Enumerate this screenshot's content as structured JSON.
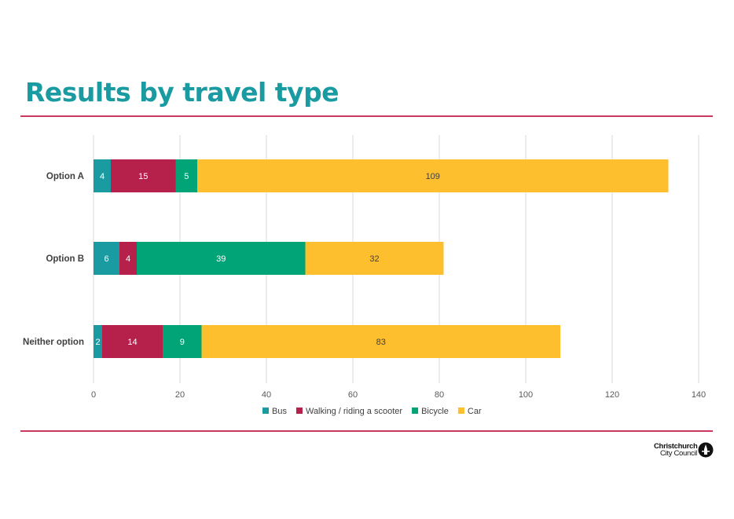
{
  "page": {
    "title": "Results by travel type"
  },
  "logo": {
    "line1": "Christchurch",
    "line2": "City Council"
  },
  "chart_data": {
    "type": "bar",
    "orientation": "horizontal",
    "stacked": true,
    "categories": [
      "Option A",
      "Option B",
      "Neither option"
    ],
    "series": [
      {
        "name": "Bus",
        "color": "#1a9ba1",
        "values": [
          4,
          6,
          2
        ]
      },
      {
        "name": "Walking / riding a scooter",
        "color": "#b5214a",
        "values": [
          15,
          4,
          14
        ]
      },
      {
        "name": "Bicycle",
        "color": "#00a477",
        "values": [
          5,
          39,
          9
        ]
      },
      {
        "name": "Car",
        "color": "#fdbf2d",
        "values": [
          109,
          32,
          83
        ]
      }
    ],
    "x_ticks": [
      0,
      20,
      40,
      60,
      80,
      100,
      120,
      140
    ],
    "xlim": [
      0,
      140
    ],
    "grid": true,
    "data_labels": true,
    "legend": "bottom"
  }
}
